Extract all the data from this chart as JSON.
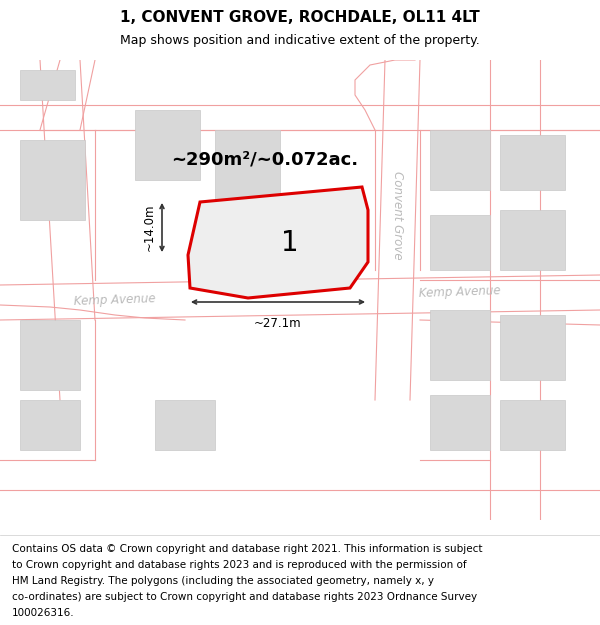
{
  "title": "1, CONVENT GROVE, ROCHDALE, OL11 4LT",
  "subtitle": "Map shows position and indicative extent of the property.",
  "footer_lines": [
    "Contains OS data © Crown copyright and database right 2021. This information is subject",
    "to Crown copyright and database rights 2023 and is reproduced with the permission of",
    "HM Land Registry. The polygons (including the associated geometry, namely x, y",
    "co-ordinates) are subject to Crown copyright and database rights 2023 Ordnance Survey",
    "100026316."
  ],
  "map_bg": "#ffffff",
  "road_line_color": "#f0a0a0",
  "building_color": "#d8d8d8",
  "building_edge": "#c8c8c8",
  "highlight_color": "#dd0000",
  "highlight_fill": "#eeeeee",
  "dim_color": "#333333",
  "area_text": "~290m²/~0.072ac.",
  "lot_label": "1",
  "dim_width": "~27.1m",
  "dim_height": "~14.0m",
  "street_color": "#bbbbbb",
  "title_fontsize": 11,
  "subtitle_fontsize": 9,
  "footer_fontsize": 7.5
}
